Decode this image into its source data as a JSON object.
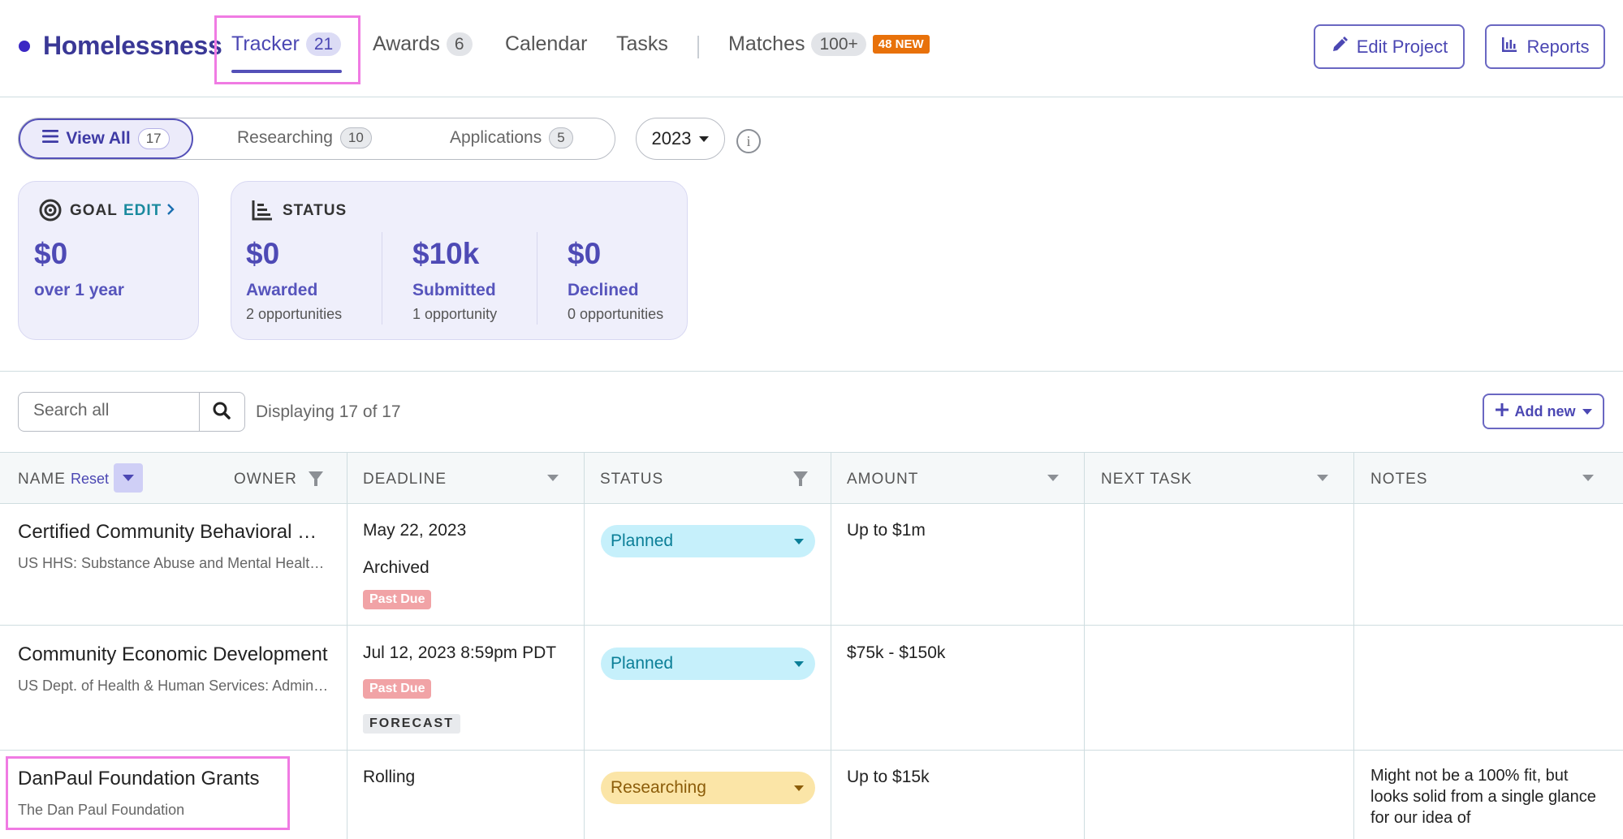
{
  "project": {
    "title": "Homelessness"
  },
  "nav": {
    "tracker": {
      "label": "Tracker",
      "count": "21"
    },
    "awards": {
      "label": "Awards",
      "count": "6"
    },
    "calendar": {
      "label": "Calendar"
    },
    "tasks": {
      "label": "Tasks"
    },
    "matches": {
      "label": "Matches",
      "count": "100+",
      "badge": "48 NEW"
    }
  },
  "header_buttons": {
    "edit_project": "Edit Project",
    "reports": "Reports"
  },
  "filters": {
    "view_all": {
      "label": "View All",
      "count": "17"
    },
    "researching": {
      "label": "Researching",
      "count": "10"
    },
    "applications": {
      "label": "Applications",
      "count": "5"
    },
    "year": "2023",
    "info_glyph": "i"
  },
  "goal_card": {
    "label": "GOAL",
    "edit_label": "EDIT",
    "amount": "$0",
    "period": "over 1 year"
  },
  "status_card": {
    "label": "STATUS",
    "stats": [
      {
        "amount": "$0",
        "label": "Awarded",
        "detail": "2 opportunities"
      },
      {
        "amount": "$10k",
        "label": "Submitted",
        "detail": "1 opportunity"
      },
      {
        "amount": "$0",
        "label": "Declined",
        "detail": "0 opportunities"
      }
    ]
  },
  "search": {
    "placeholder": "Search all",
    "display_text": "Displaying 17 of 17"
  },
  "add_new": {
    "label": "Add new"
  },
  "table": {
    "headers": {
      "name": "NAME",
      "reset": "Reset",
      "owner": "OWNER",
      "deadline": "DEADLINE",
      "status": "STATUS",
      "amount": "AMOUNT",
      "next_task": "NEXT TASK",
      "notes": "NOTES"
    },
    "rows": [
      {
        "name": "Certified Community Behavioral Health Clinic",
        "org": "US HHS: Substance Abuse and Mental Health Services Administration",
        "deadline": "May 22, 2023",
        "extra": "Archived",
        "tag": "Past Due",
        "status": "Planned",
        "amount": "Up to $1m",
        "notes": ""
      },
      {
        "name": "Community Economic Development",
        "org": "US Dept. of Health & Human Services: Administration for Children and Families",
        "deadline": "Jul 12, 2023 8:59pm PDT",
        "tag": "Past Due",
        "tag2": "FORECAST",
        "status": "Planned",
        "amount": "$75k - $150k",
        "notes": ""
      },
      {
        "name": "DanPaul Foundation Grants",
        "org": "The Dan Paul Foundation",
        "deadline": "Rolling",
        "status": "Researching",
        "amount": "Up to $15k",
        "notes": "Might not be a 100% fit, but looks solid from a single glance for our idea of"
      }
    ]
  },
  "colors": {
    "accent": "#4b47b3",
    "highlight": "#f07be3",
    "planned": "#c6f0fb",
    "researching": "#fbe5a7",
    "past_due": "#f1a3a6",
    "new_badge": "#e8710a"
  }
}
